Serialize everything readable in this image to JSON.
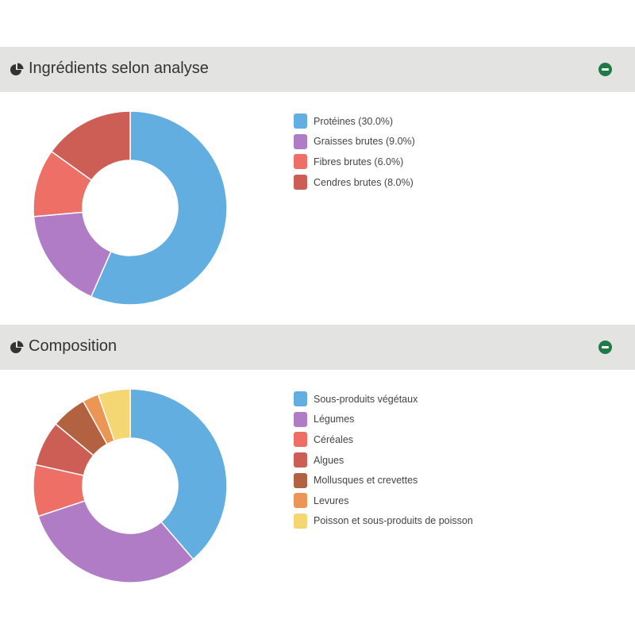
{
  "panels": [
    {
      "id": "analysis",
      "title": "Ingrédients selon analyse",
      "icon": "pie-chart-icon",
      "collapse_icon": "minus-circle-icon"
    },
    {
      "id": "composition",
      "title": "Composition",
      "icon": "pie-chart-icon",
      "collapse_icon": "minus-circle-icon"
    }
  ],
  "chart_data": [
    {
      "type": "pie",
      "donut": true,
      "legend": "right",
      "categories": [
        "Protéines (30.0%)",
        "Graisses brutes (9.0%)",
        "Fibres brutes (6.0%)",
        "Cendres brutes (8.0%)"
      ],
      "values": [
        30.0,
        9.0,
        6.0,
        8.0
      ],
      "colors": [
        "#62aee0",
        "#b07cc6",
        "#ed6f66",
        "#cd5e56"
      ]
    },
    {
      "type": "pie",
      "donut": true,
      "legend": "right",
      "categories": [
        "Sous-produits végétaux",
        "Légumes",
        "Céréales",
        "Algues",
        "Mollusques et crevettes",
        "Levures",
        "Poisson et sous-produits de poisson"
      ],
      "values": [
        36,
        29,
        8,
        7,
        5.5,
        2.5,
        5
      ],
      "colors": [
        "#62aee0",
        "#b07cc6",
        "#ed6f66",
        "#cd5e56",
        "#b26241",
        "#ec9656",
        "#f4d673"
      ]
    }
  ]
}
